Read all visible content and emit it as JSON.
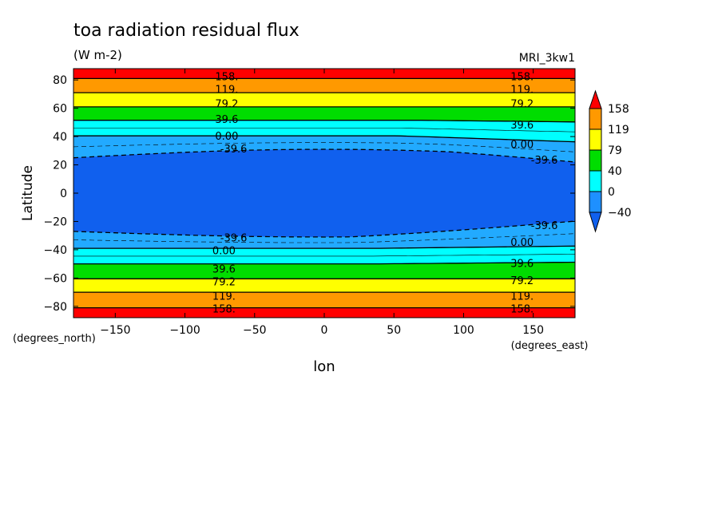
{
  "chart_data": {
    "type": "contour",
    "title": "toa radiation residual flux",
    "units": "(W m-2)",
    "model": "MRI_3kw1",
    "xlabel": "lon",
    "ylabel": "Latitude",
    "x_units": "(degrees_east)",
    "y_units": "(degrees_north)",
    "xlim": [
      -180,
      180
    ],
    "ylim": [
      -88,
      88
    ],
    "x_ticks": [
      -150,
      -100,
      -50,
      0,
      50,
      100,
      150
    ],
    "y_ticks": [
      -80,
      -60,
      -40,
      -20,
      0,
      20,
      40,
      60,
      80
    ],
    "colorbar": {
      "labels": [
        "158",
        "119",
        "79",
        "40",
        "0",
        "-40"
      ],
      "colors": [
        "#ff0000",
        "#ff9900",
        "#ffff00",
        "#00dd00",
        "#00ffff",
        "#1e90ff",
        "#1060ee"
      ]
    },
    "bands": [
      {
        "name": "red",
        "color": "#ff0000"
      },
      {
        "name": "orange",
        "color": "#ff9900"
      },
      {
        "name": "yellow",
        "color": "#ffff00"
      },
      {
        "name": "green",
        "color": "#00dd00"
      },
      {
        "name": "cyan",
        "color": "#00ffff"
      },
      {
        "name": "light-blue",
        "color": "#22aaff"
      },
      {
        "name": "blue",
        "color": "#1060ee"
      }
    ],
    "contour_labels": [
      {
        "text": "158.",
        "lon": -70,
        "lat": 82
      },
      {
        "text": "119.",
        "lon": -70,
        "lat": 73
      },
      {
        "text": "79.2",
        "lon": -70,
        "lat": 63
      },
      {
        "text": "39.6",
        "lon": -70,
        "lat": 52
      },
      {
        "text": "0.00",
        "lon": -70,
        "lat": 40
      },
      {
        "text": "-39.6",
        "lon": -65,
        "lat": 31
      },
      {
        "text": "158.",
        "lon": 142,
        "lat": 82
      },
      {
        "text": "119.",
        "lon": 142,
        "lat": 73
      },
      {
        "text": "79.2",
        "lon": 142,
        "lat": 63
      },
      {
        "text": "39.6",
        "lon": 142,
        "lat": 48
      },
      {
        "text": "0.00",
        "lon": 142,
        "lat": 34
      },
      {
        "text": "-39.6",
        "lon": 158,
        "lat": 23
      },
      {
        "text": "-39.6",
        "lon": -65,
        "lat": -32
      },
      {
        "text": "0.00",
        "lon": -72,
        "lat": -41
      },
      {
        "text": "39.6",
        "lon": -72,
        "lat": -54
      },
      {
        "text": "79.2",
        "lon": -72,
        "lat": -63
      },
      {
        "text": "119.",
        "lon": -72,
        "lat": -73
      },
      {
        "text": "158.",
        "lon": -72,
        "lat": -82
      },
      {
        "text": "-39.6",
        "lon": 158,
        "lat": -23
      },
      {
        "text": "0.00",
        "lon": 142,
        "lat": -35
      },
      {
        "text": "39.6",
        "lon": 142,
        "lat": -50
      },
      {
        "text": "79.2",
        "lon": 142,
        "lat": -62
      },
      {
        "text": "119.",
        "lon": 142,
        "lat": -73
      },
      {
        "text": "158.",
        "lon": 142,
        "lat": -82
      }
    ]
  }
}
